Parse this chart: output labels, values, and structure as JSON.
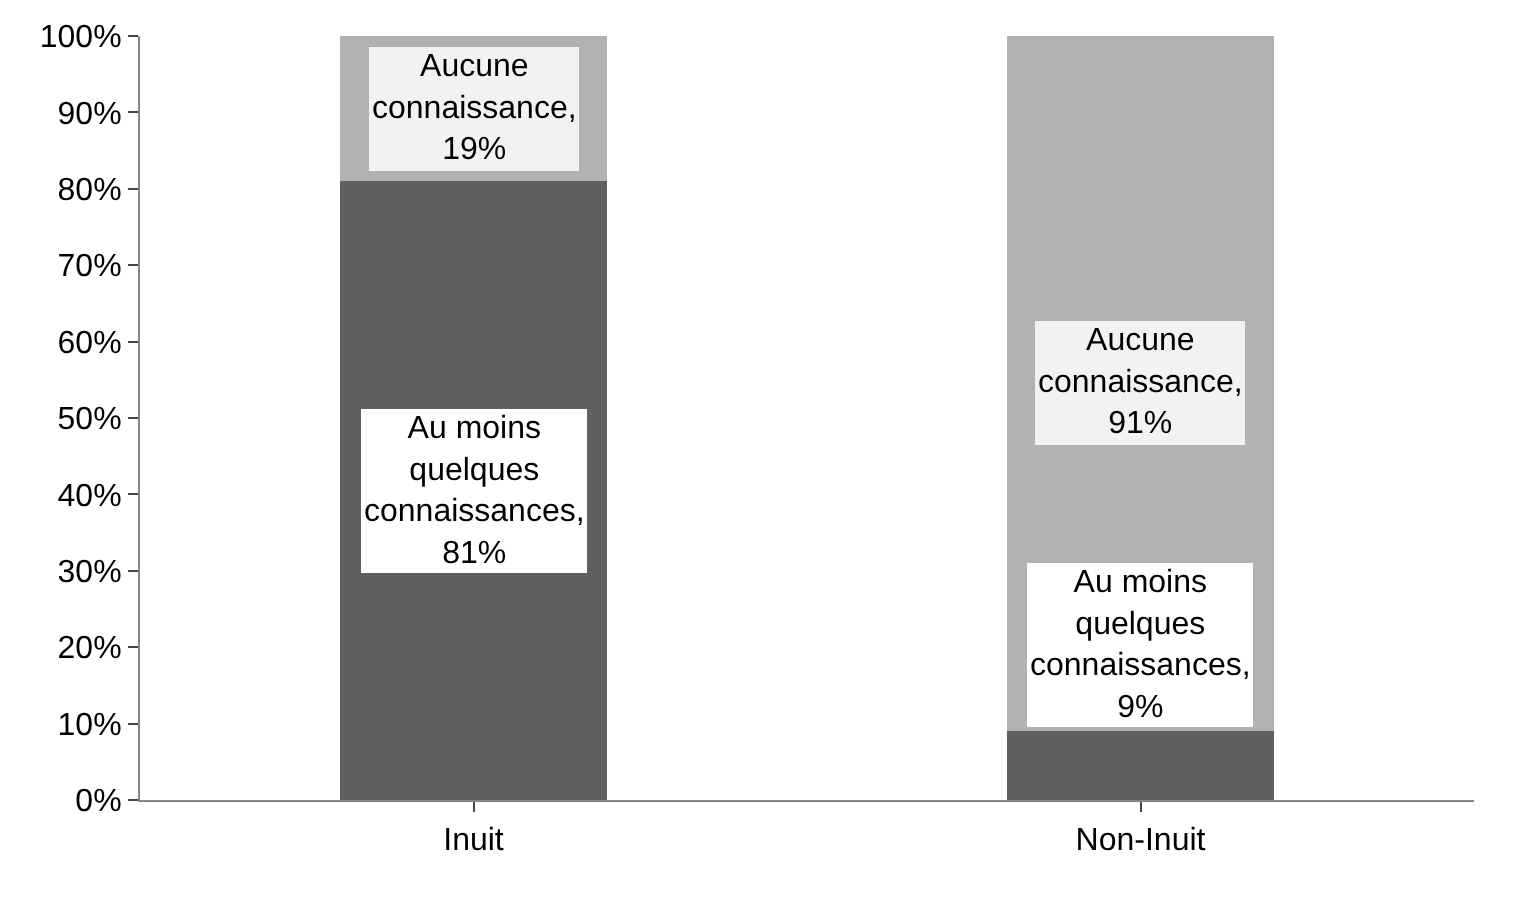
{
  "chart_data": {
    "type": "bar",
    "stacked": true,
    "categories": [
      "Inuit",
      "Non-Inuit"
    ],
    "series": [
      {
        "color": "#606060",
        "values": [
          81,
          9
        ],
        "value_labels": [
          "Au moins quelques connaissances, 81%",
          "Au moins quelques connaissances, 9%"
        ]
      },
      {
        "color": "#b2b2b2",
        "values": [
          19,
          91
        ],
        "value_labels": [
          "Aucune connaissance, 19%",
          "Aucune connaissance, 91%"
        ]
      }
    ],
    "ylim": [
      0,
      100
    ],
    "yticks": [
      {
        "value": 0,
        "label": "0%"
      },
      {
        "value": 10,
        "label": "10%"
      },
      {
        "value": 20,
        "label": "20%"
      },
      {
        "value": 30,
        "label": "30%"
      },
      {
        "value": 40,
        "label": "40%"
      },
      {
        "value": 50,
        "label": "50%"
      },
      {
        "value": 60,
        "label": "60%"
      },
      {
        "value": 70,
        "label": "70%"
      },
      {
        "value": 80,
        "label": "80%"
      },
      {
        "value": 90,
        "label": "90%"
      },
      {
        "value": 100,
        "label": "100%"
      }
    ],
    "legend": false
  }
}
